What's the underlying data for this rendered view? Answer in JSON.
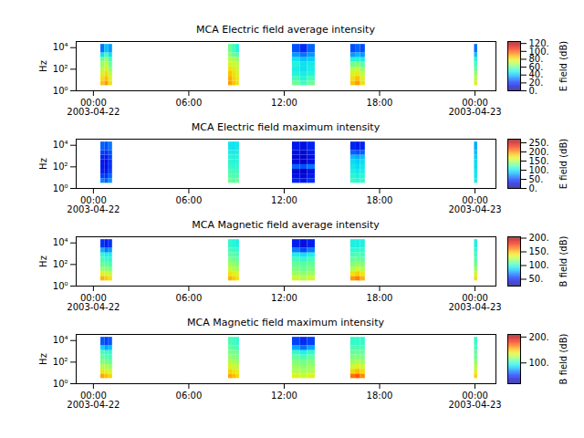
{
  "chart_data": {
    "type": "spectrogram",
    "ylabel": "Hz",
    "log": "y",
    "xlim": [
      "2003-04-21T22:55",
      "2003-04-23T01:19"
    ],
    "xticks": [
      {
        "value": "2003-04-22T00:00",
        "label": "00:00\n2003-04-22"
      },
      {
        "value": "2003-04-22T06:00",
        "label": "06:00"
      },
      {
        "value": "2003-04-22T12:00",
        "label": "12:00"
      },
      {
        "value": "2003-04-22T18:00",
        "label": "18:00"
      },
      {
        "value": "2003-04-23T00:00",
        "label": "00:00\n2003-04-23"
      }
    ],
    "ylim": [
      1,
      37000
    ],
    "yticks": [
      {
        "value": 1,
        "label": "10⁰"
      },
      {
        "value": 100,
        "label": "10²"
      },
      {
        "value": 10000,
        "label": "10⁴"
      }
    ],
    "freq_bins": [
      3,
      8,
      22,
      60,
      160,
      450,
      1200,
      3300,
      20000
    ],
    "time_bins": [
      [
        "2003-04-22T00:28",
        "2003-04-22T00:43"
      ],
      [
        "2003-04-22T00:43",
        "2003-04-22T00:58"
      ],
      [
        "2003-04-22T00:58",
        "2003-04-22T01:12"
      ],
      [
        "2003-04-22T08:30",
        "2003-04-22T08:44"
      ],
      [
        "2003-04-22T08:44",
        "2003-04-22T08:58"
      ],
      [
        "2003-04-22T08:58",
        "2003-04-22T09:11"
      ],
      [
        "2003-04-22T12:31",
        "2003-04-22T13:00"
      ],
      [
        "2003-04-22T13:00",
        "2003-04-22T13:28"
      ],
      [
        "2003-04-22T13:28",
        "2003-04-22T13:57"
      ],
      [
        "2003-04-22T16:11",
        "2003-04-22T16:29"
      ],
      [
        "2003-04-22T16:29",
        "2003-04-22T16:48"
      ],
      [
        "2003-04-22T16:48",
        "2003-04-22T17:06"
      ],
      [
        "2003-04-22T23:58",
        "2003-04-23T00:10"
      ]
    ],
    "panels": [
      {
        "title": "MCA  Electric field average intensity",
        "colorbar_label": "E field (dB)",
        "clim": [
          0,
          125
        ],
        "cticks": [
          {
            "value": 0,
            "label": "0."
          },
          {
            "value": 20,
            "label": "20."
          },
          {
            "value": 40,
            "label": "40."
          },
          {
            "value": 60,
            "label": "60."
          },
          {
            "value": 80,
            "label": "80."
          },
          {
            "value": 100,
            "label": "100."
          },
          {
            "value": 120,
            "label": "120."
          }
        ],
        "values": [
          [
            85,
            80,
            75,
            70,
            65,
            60,
            45,
            30
          ],
          [
            90,
            85,
            80,
            75,
            70,
            65,
            55,
            40
          ],
          [
            80,
            75,
            70,
            65,
            60,
            55,
            45,
            35
          ],
          [
            90,
            88,
            85,
            80,
            75,
            70,
            65,
            60
          ],
          [
            85,
            82,
            80,
            78,
            72,
            68,
            60,
            55
          ],
          [
            80,
            78,
            75,
            72,
            70,
            65,
            58,
            50
          ],
          [
            60,
            55,
            50,
            48,
            50,
            45,
            35,
            25
          ],
          [
            55,
            50,
            48,
            45,
            45,
            40,
            30,
            20
          ],
          [
            60,
            55,
            50,
            48,
            47,
            42,
            35,
            28
          ],
          [
            85,
            80,
            75,
            70,
            60,
            50,
            35,
            25
          ],
          [
            90,
            85,
            78,
            72,
            62,
            50,
            38,
            28
          ],
          [
            80,
            75,
            70,
            65,
            58,
            48,
            35,
            25
          ],
          [
            75,
            70,
            65,
            60,
            55,
            50,
            40,
            30
          ]
        ]
      },
      {
        "title": "MCA  Electric field maximum intensity",
        "colorbar_label": "E field (dB)",
        "clim": [
          0,
          270
        ],
        "cticks": [
          {
            "value": 0,
            "label": "0."
          },
          {
            "value": 50,
            "label": "50."
          },
          {
            "value": 100,
            "label": "100."
          },
          {
            "value": 150,
            "label": "150."
          },
          {
            "value": 200,
            "label": "200."
          },
          {
            "value": 250,
            "label": "250."
          }
        ],
        "values": [
          [
            70,
            50,
            40,
            35,
            35,
            40,
            50,
            60
          ],
          [
            60,
            45,
            35,
            30,
            30,
            35,
            45,
            55
          ],
          [
            75,
            60,
            50,
            45,
            45,
            50,
            55,
            65
          ],
          [
            130,
            125,
            120,
            115,
            110,
            110,
            105,
            100
          ],
          [
            125,
            120,
            118,
            112,
            108,
            106,
            102,
            98
          ],
          [
            128,
            122,
            118,
            114,
            110,
            108,
            104,
            100
          ],
          [
            40,
            30,
            25,
            60,
            25,
            25,
            30,
            35
          ],
          [
            35,
            25,
            20,
            55,
            20,
            20,
            25,
            30
          ],
          [
            45,
            35,
            30,
            65,
            30,
            30,
            35,
            40
          ],
          [
            115,
            110,
            105,
            100,
            95,
            85,
            60,
            40
          ],
          [
            110,
            105,
            100,
            95,
            90,
            80,
            55,
            35
          ],
          [
            115,
            110,
            105,
            100,
            95,
            85,
            60,
            40
          ],
          [
            105,
            100,
            100,
            95,
            95,
            90,
            85,
            80
          ]
        ]
      },
      {
        "title": "MCA  Magnetic field average intensity",
        "colorbar_label": "B field (dB)",
        "clim": [
          25,
          205
        ],
        "cticks": [
          {
            "value": 50,
            "label": "50."
          },
          {
            "value": 100,
            "label": "100."
          },
          {
            "value": 150,
            "label": "150."
          },
          {
            "value": 200,
            "label": "200."
          }
        ],
        "values": [
          [
            150,
            135,
            120,
            110,
            105,
            100,
            80,
            55
          ],
          [
            145,
            130,
            118,
            108,
            102,
            95,
            70,
            50
          ],
          [
            140,
            128,
            115,
            105,
            100,
            95,
            75,
            55
          ],
          [
            150,
            140,
            130,
            120,
            115,
            110,
            105,
            100
          ],
          [
            145,
            135,
            125,
            118,
            112,
            108,
            102,
            98
          ],
          [
            140,
            132,
            122,
            115,
            110,
            105,
            100,
            95
          ],
          [
            130,
            120,
            115,
            110,
            105,
            95,
            70,
            50
          ],
          [
            125,
            118,
            112,
            108,
            100,
            90,
            60,
            45
          ],
          [
            130,
            120,
            115,
            110,
            105,
            95,
            70,
            50
          ],
          [
            155,
            140,
            125,
            115,
            110,
            105,
            100,
            95
          ],
          [
            160,
            145,
            130,
            118,
            112,
            106,
            100,
            95
          ],
          [
            150,
            138,
            125,
            115,
            110,
            105,
            100,
            95
          ],
          [
            140,
            130,
            120,
            112,
            108,
            104,
            100,
            96
          ]
        ]
      },
      {
        "title": "MCA  Magnetic field maximum intensity",
        "colorbar_label": "B field (dB)",
        "clim": [
          20,
          210
        ],
        "cticks": [
          {
            "value": 100,
            "label": "100."
          },
          {
            "value": 200,
            "label": "200."
          }
        ],
        "values": [
          [
            155,
            140,
            125,
            115,
            110,
            105,
            85,
            60
          ],
          [
            150,
            135,
            123,
            113,
            107,
            100,
            75,
            55
          ],
          [
            145,
            133,
            120,
            110,
            105,
            100,
            80,
            60
          ],
          [
            155,
            145,
            135,
            125,
            120,
            115,
            110,
            105
          ],
          [
            150,
            140,
            130,
            123,
            117,
            113,
            107,
            103
          ],
          [
            145,
            137,
            127,
            120,
            115,
            110,
            105,
            100
          ],
          [
            135,
            125,
            120,
            115,
            110,
            100,
            75,
            55
          ],
          [
            130,
            123,
            117,
            113,
            105,
            95,
            65,
            50
          ],
          [
            135,
            125,
            120,
            115,
            110,
            100,
            75,
            55
          ],
          [
            165,
            145,
            130,
            120,
            115,
            110,
            105,
            100
          ],
          [
            170,
            150,
            135,
            123,
            117,
            111,
            105,
            100
          ],
          [
            160,
            143,
            130,
            120,
            115,
            110,
            105,
            100
          ],
          [
            145,
            135,
            125,
            117,
            113,
            109,
            105,
            101
          ]
        ]
      }
    ]
  }
}
